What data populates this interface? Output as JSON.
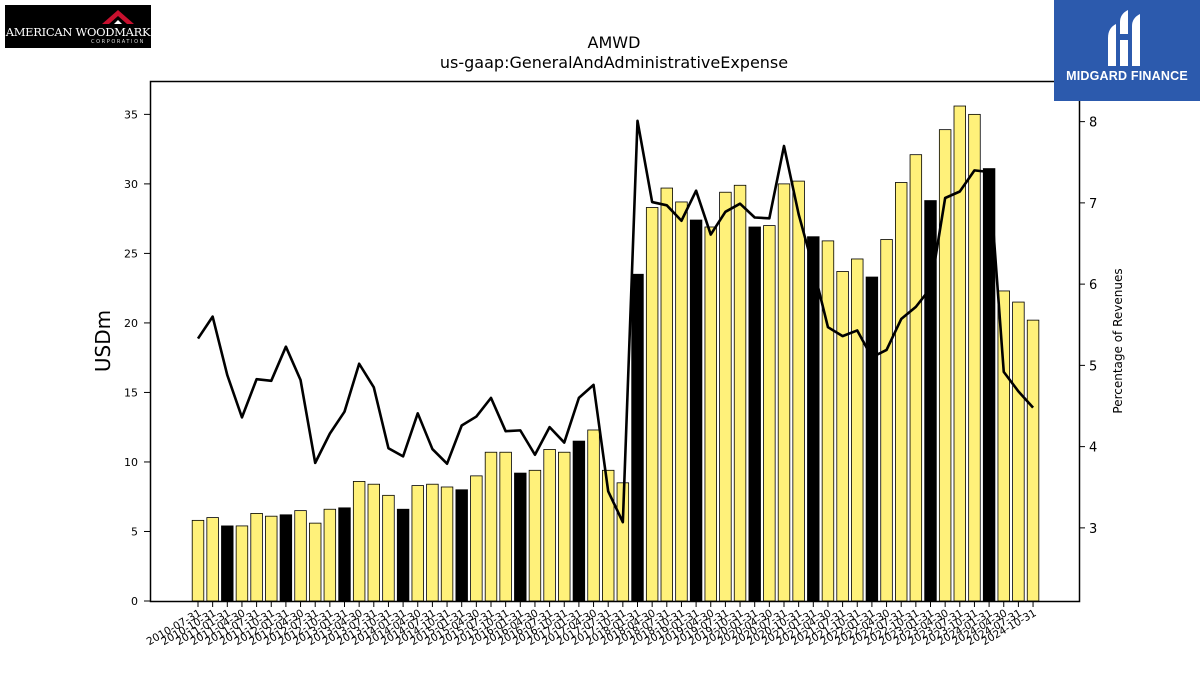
{
  "logos": {
    "left": {
      "name": "AMERICAN WOODMARK",
      "sub": "CORPORATION"
    },
    "right": {
      "name": "MIDGARD FINANCE"
    }
  },
  "colors": {
    "bar_highlight": "#fff17a",
    "bar_dark": "#000000",
    "line": "#000000"
  },
  "chart_data": {
    "type": "bar",
    "title": "AMWD",
    "subtitle": "us-gaap:GeneralAndAdministrativeExpense",
    "ylabel": "USDm",
    "y2label": "Percentage of Revenues",
    "ylim": [
      0,
      37.4
    ],
    "y2lim": [
      2.1,
      8.5
    ],
    "yticks": [
      0,
      5,
      10,
      15,
      20,
      25,
      30,
      35
    ],
    "y2ticks": [
      3,
      4,
      5,
      6,
      7,
      8
    ],
    "categories": [
      "2010-07-31",
      "2010-10-31",
      "2011-01-31",
      "2011-04-30",
      "2011-07-31",
      "2011-10-31",
      "2012-01-31",
      "2012-04-30",
      "2012-07-31",
      "2012-10-31",
      "2013-01-31",
      "2013-04-30",
      "2013-07-31",
      "2013-10-31",
      "2014-01-31",
      "2014-04-30",
      "2014-07-31",
      "2014-10-31",
      "2015-01-31",
      "2015-04-30",
      "2015-07-31",
      "2015-10-31",
      "2016-01-31",
      "2016-04-30",
      "2016-07-31",
      "2016-10-31",
      "2017-01-31",
      "2017-04-30",
      "2017-07-31",
      "2017-10-31",
      "2018-01-31",
      "2018-04-30",
      "2018-07-31",
      "2018-10-31",
      "2019-01-31",
      "2019-04-30",
      "2019-07-31",
      "2019-10-31",
      "2020-01-31",
      "2020-04-30",
      "2020-07-31",
      "2020-10-31",
      "2021-01-31",
      "2021-04-30",
      "2021-07-31",
      "2021-10-31",
      "2022-01-31",
      "2022-04-30",
      "2022-07-31",
      "2022-10-31",
      "2023-01-31",
      "2023-04-30",
      "2023-07-31",
      "2023-10-31",
      "2024-01-31",
      "2024-04-30",
      "2024-07-31",
      "2024-10-31"
    ],
    "bar_values": [
      5.8,
      6.0,
      5.4,
      5.4,
      6.3,
      6.1,
      6.2,
      6.5,
      5.6,
      6.6,
      6.7,
      8.6,
      8.4,
      7.6,
      6.6,
      8.3,
      8.4,
      8.2,
      8.0,
      9.0,
      10.7,
      10.7,
      9.2,
      9.4,
      10.9,
      10.7,
      11.5,
      12.3,
      9.4,
      8.5,
      23.5,
      28.3,
      29.7,
      28.7,
      27.4,
      26.9,
      29.4,
      29.9,
      26.9,
      27.0,
      30.0,
      30.2,
      26.2,
      25.9,
      23.7,
      24.6,
      23.3,
      26.0,
      30.1,
      32.1,
      28.8,
      33.9,
      35.6,
      35.0,
      31.1,
      22.3,
      21.5,
      20.2
    ],
    "dark_bar_indices": [
      2,
      6,
      10,
      14,
      18,
      22,
      26,
      30,
      34,
      38,
      42,
      46,
      50,
      54
    ],
    "line_values": [
      5.33,
      5.6,
      4.88,
      4.36,
      4.83,
      4.81,
      5.23,
      4.82,
      3.8,
      4.16,
      4.43,
      5.02,
      4.73,
      3.98,
      3.88,
      4.41,
      3.97,
      3.79,
      4.26,
      4.37,
      4.6,
      4.19,
      4.2,
      3.9,
      4.24,
      4.05,
      4.6,
      4.76,
      3.45,
      3.07,
      8.01,
      7.01,
      6.97,
      6.78,
      7.15,
      6.61,
      6.89,
      6.99,
      6.82,
      6.81,
      7.7,
      6.86,
      6.2,
      5.47,
      5.36,
      5.43,
      5.1,
      5.19,
      5.57,
      5.72,
      5.95,
      7.06,
      7.14,
      7.4,
      7.38,
      4.92,
      4.68,
      4.48
    ]
  }
}
